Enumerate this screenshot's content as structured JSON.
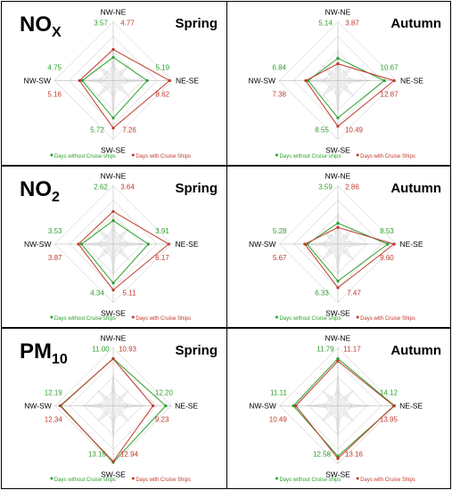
{
  "legend": {
    "without": "Days without Cruise ships",
    "with": "Days with Cruise Ships"
  },
  "colors": {
    "without": "#2ca02c",
    "with": "#c0392b"
  },
  "axis_labels": {
    "top": "NW-NE",
    "right": "NE-SE",
    "bottom": "SW-SE",
    "left": "NW-SW"
  },
  "chart_data": [
    {
      "type": "radar",
      "pollutant": "NO",
      "pollutant_sub": "X",
      "season": "Spring",
      "categories": [
        "NW-NE",
        "NE-SE",
        "SW-SE",
        "NW-SW"
      ],
      "series": [
        {
          "name": "Days without Cruise ships",
          "values": [
            3.57,
            5.19,
            5.72,
            4.75
          ]
        },
        {
          "name": "Days with Cruise Ships",
          "values": [
            4.77,
            8.62,
            7.26,
            5.16
          ]
        }
      ],
      "max": 9
    },
    {
      "type": "radar",
      "pollutant": "",
      "pollutant_sub": "",
      "season": "Autumn",
      "categories": [
        "NW-NE",
        "NE-SE",
        "SW-SE",
        "NW-SW"
      ],
      "series": [
        {
          "name": "Days without Cruise ships",
          "values": [
            5.14,
            10.67,
            8.55,
            6.84
          ]
        },
        {
          "name": "Days with Cruise Ships",
          "values": [
            3.87,
            12.87,
            10.49,
            7.38
          ]
        }
      ],
      "max": 13.5
    },
    {
      "type": "radar",
      "pollutant": "NO",
      "pollutant_sub": "2",
      "season": "Spring",
      "categories": [
        "NW-NE",
        "NE-SE",
        "SW-SE",
        "NW-SW"
      ],
      "series": [
        {
          "name": "Days without Cruise ships",
          "values": [
            2.62,
            3.91,
            4.34,
            3.53
          ]
        },
        {
          "name": "Days with Cruise Ships",
          "values": [
            3.64,
            6.17,
            5.11,
            3.87
          ]
        }
      ],
      "max": 6.5
    },
    {
      "type": "radar",
      "pollutant": "",
      "pollutant_sub": "",
      "season": "Autumn",
      "categories": [
        "NW-NE",
        "NE-SE",
        "SW-SE",
        "NW-SW"
      ],
      "series": [
        {
          "name": "Days without Cruise ships",
          "values": [
            3.59,
            8.53,
            6.33,
            5.28
          ]
        },
        {
          "name": "Days with Cruise Ships",
          "values": [
            2.86,
            9.6,
            7.47,
            5.67
          ]
        }
      ],
      "max": 10
    },
    {
      "type": "radar",
      "pollutant": "PM",
      "pollutant_sub": "10",
      "season": "Spring",
      "categories": [
        "NW-NE",
        "NE-SE",
        "SW-SE",
        "NW-SW"
      ],
      "series": [
        {
          "name": "Days without Cruise ships",
          "values": [
            11.0,
            12.2,
            13.15,
            12.19
          ]
        },
        {
          "name": "Days with Cruise Ships",
          "values": [
            10.93,
            9.23,
            12.94,
            12.34
          ]
        }
      ],
      "max": 13.5
    },
    {
      "type": "radar",
      "pollutant": "",
      "pollutant_sub": "",
      "season": "Autumn",
      "categories": [
        "NW-NE",
        "NE-SE",
        "SW-SE",
        "NW-SW"
      ],
      "series": [
        {
          "name": "Days without Cruise ships",
          "values": [
            11.79,
            14.12,
            12.58,
            11.11
          ]
        },
        {
          "name": "Days with Cruise Ships",
          "values": [
            11.17,
            13.95,
            13.16,
            10.49
          ]
        }
      ],
      "max": 14.5
    }
  ]
}
